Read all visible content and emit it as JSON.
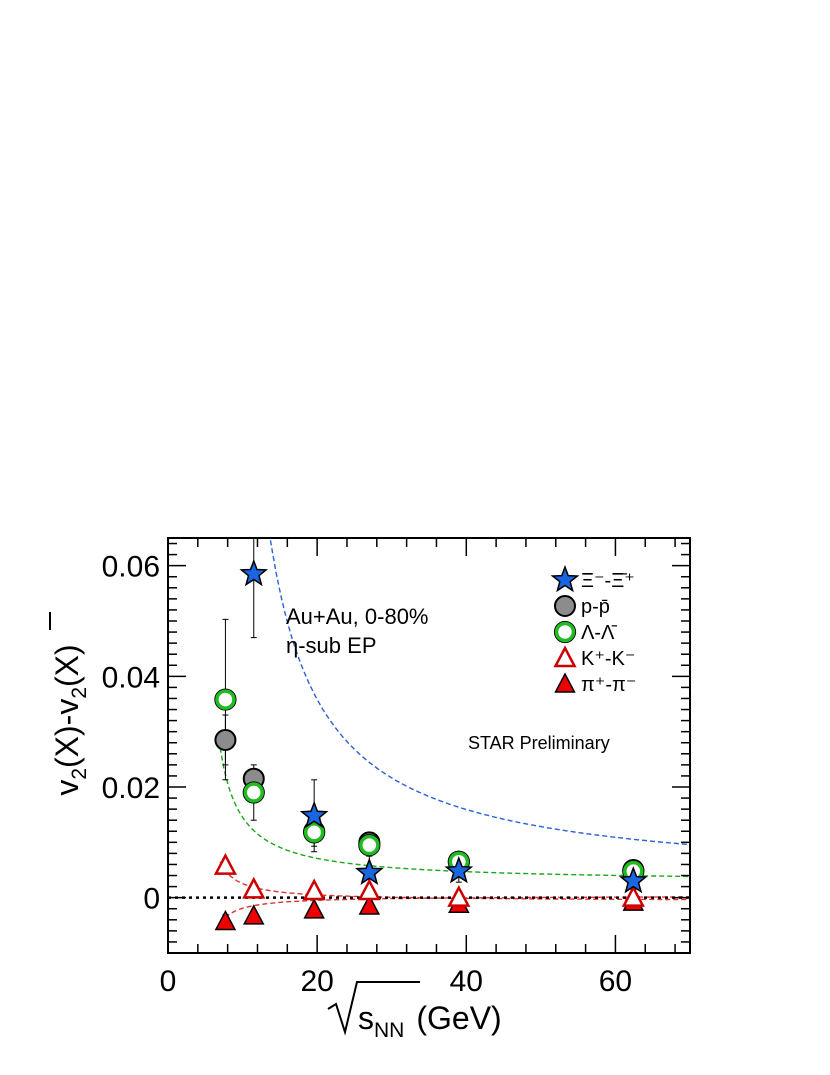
{
  "chart_data": {
    "type": "scatter",
    "xlabel": "√s_NN (GeV)",
    "ylabel": "v2(X)-v2(X̄)",
    "xlim": [
      0,
      70
    ],
    "ylim": [
      -0.01,
      0.065
    ],
    "x_ticks": [
      0,
      20,
      40,
      60
    ],
    "x_tick_labels": [
      "0",
      "20",
      "40",
      "60"
    ],
    "y_ticks": [
      0,
      0.02,
      0.04,
      0.06
    ],
    "y_tick_labels": [
      "0",
      "0.02",
      "0.04",
      "0.06"
    ],
    "grid": false,
    "legend_position": "top-right",
    "annotations": {
      "system": "Au+Au,  0-80%",
      "method": "η-sub EP",
      "preliminary": "STAR Preliminary"
    },
    "series": [
      {
        "key": "xi",
        "name": "Ξ⁻-Ξ̄⁺",
        "marker": "star",
        "color": "#1a66e0",
        "x": [
          11.5,
          19.6,
          27,
          39,
          62.4
        ],
        "y": [
          0.0585,
          0.0148,
          0.0045,
          0.0048,
          0.003
        ],
        "err": [
          0.0115,
          0.0065,
          0.003,
          0.002,
          0.0015
        ]
      },
      {
        "key": "proton",
        "name": "p-p̄",
        "marker": "circle-filled",
        "color": "#8c8c8c",
        "x": [
          7.7,
          11.5,
          19.6,
          27,
          39,
          62.4
        ],
        "y": [
          0.0285,
          0.0215,
          0.012,
          0.01,
          0.0065,
          0.005
        ],
        "err": [
          0.0045,
          0.0015,
          0.001,
          0.0005,
          0.0005,
          0.0004
        ]
      },
      {
        "key": "lambda",
        "name": "Λ-Λ̄",
        "marker": "circle-open",
        "color": "#22bb22",
        "x": [
          7.7,
          11.5,
          19.6,
          27,
          39,
          62.4
        ],
        "y": [
          0.0358,
          0.019,
          0.0118,
          0.0095,
          0.0065,
          0.0048
        ],
        "err": [
          0.0145,
          0.005,
          0.0025,
          0.0012,
          0.001,
          0.0008
        ]
      },
      {
        "key": "kaon",
        "name": "K⁺-K⁻",
        "marker": "triangle-open",
        "color": "#cc0000",
        "x": [
          7.7,
          11.5,
          19.6,
          27,
          39,
          62.4
        ],
        "y": [
          0.0058,
          0.0015,
          0.0012,
          0.0012,
          0.0,
          0.0
        ],
        "err": [
          0.0006,
          0.0004,
          0.0003,
          0.0003,
          0.0003,
          0.0002
        ]
      },
      {
        "key": "pion",
        "name": "π⁺-π⁻",
        "marker": "triangle-filled",
        "color": "#ee0000",
        "x": [
          7.7,
          11.5,
          19.6,
          27,
          39,
          62.4
        ],
        "y": [
          -0.0043,
          -0.0033,
          -0.0022,
          -0.0015,
          -0.0012,
          -0.0008
        ],
        "err": [
          0.0012,
          0.0005,
          0.0003,
          0.0002,
          0.0002,
          0.0002
        ]
      }
    ],
    "fits": [
      {
        "key": "xi",
        "color": "#2a5fd8",
        "a": 0.45,
        "b": 6.5,
        "c": 0.0025
      },
      {
        "key": "lambda",
        "color": "#1aa81a",
        "a": 0.068,
        "b": 4.2,
        "c": 0.0028
      },
      {
        "key": "kaon",
        "color": "#dd3333",
        "a": 0.017,
        "b": 4.6,
        "c": -0.0006
      },
      {
        "key": "pion",
        "color": "#dd3333",
        "a": -0.012,
        "b": 4.6,
        "c": 0.0003
      }
    ]
  }
}
